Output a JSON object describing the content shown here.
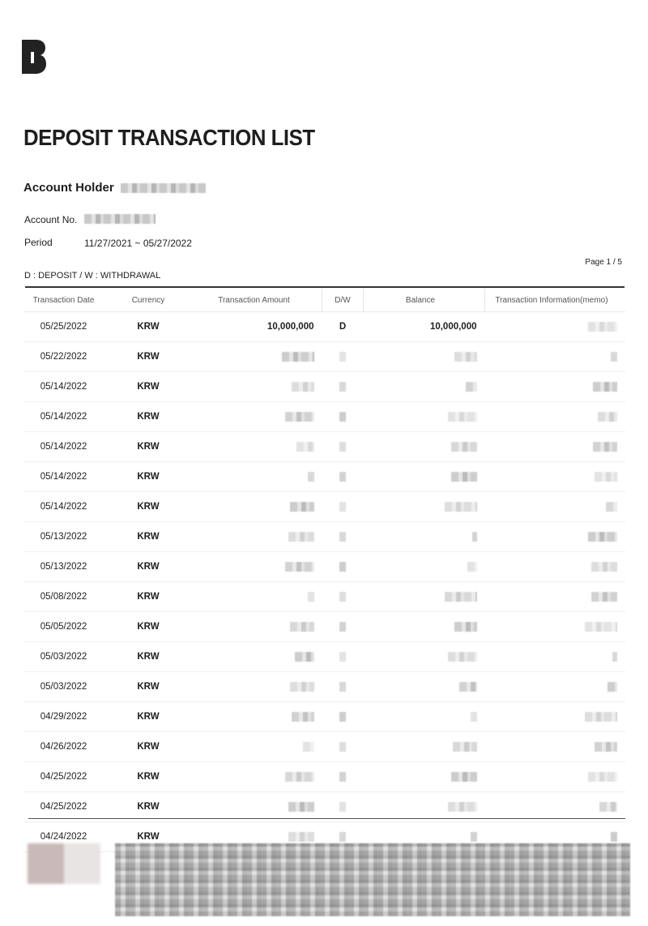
{
  "logo_text": "B",
  "title": "DEPOSIT TRANSACTION LIST",
  "account_holder_label": "Account Holder",
  "account_no_label": "Account No.",
  "period_label": "Period",
  "period_value": "11/27/2021 ~ 05/27/2022",
  "page_indicator": "Page 1  /  5",
  "legend": "D : DEPOSIT / W : WITHDRAWAL",
  "table": {
    "headers": [
      "Transaction Date",
      "Currency",
      "Transaction Amount",
      "D/W",
      "Balance",
      "Transaction Information(memo)"
    ],
    "rows": [
      {
        "date": "05/25/2022",
        "currency": "KRW",
        "amount": "10,000,000",
        "dw": "D",
        "balance": "10,000,000"
      },
      {
        "date": "05/22/2022",
        "currency": "KRW"
      },
      {
        "date": "05/14/2022",
        "currency": "KRW"
      },
      {
        "date": "05/14/2022",
        "currency": "KRW"
      },
      {
        "date": "05/14/2022",
        "currency": "KRW"
      },
      {
        "date": "05/14/2022",
        "currency": "KRW"
      },
      {
        "date": "05/14/2022",
        "currency": "KRW"
      },
      {
        "date": "05/13/2022",
        "currency": "KRW"
      },
      {
        "date": "05/13/2022",
        "currency": "KRW"
      },
      {
        "date": "05/08/2022",
        "currency": "KRW"
      },
      {
        "date": "05/05/2022",
        "currency": "KRW"
      },
      {
        "date": "05/03/2022",
        "currency": "KRW"
      },
      {
        "date": "05/03/2022",
        "currency": "KRW"
      },
      {
        "date": "04/29/2022",
        "currency": "KRW"
      },
      {
        "date": "04/26/2022",
        "currency": "KRW"
      },
      {
        "date": "04/25/2022",
        "currency": "KRW"
      },
      {
        "date": "04/25/2022",
        "currency": "KRW"
      },
      {
        "date": "04/24/2022",
        "currency": "KRW"
      }
    ]
  }
}
